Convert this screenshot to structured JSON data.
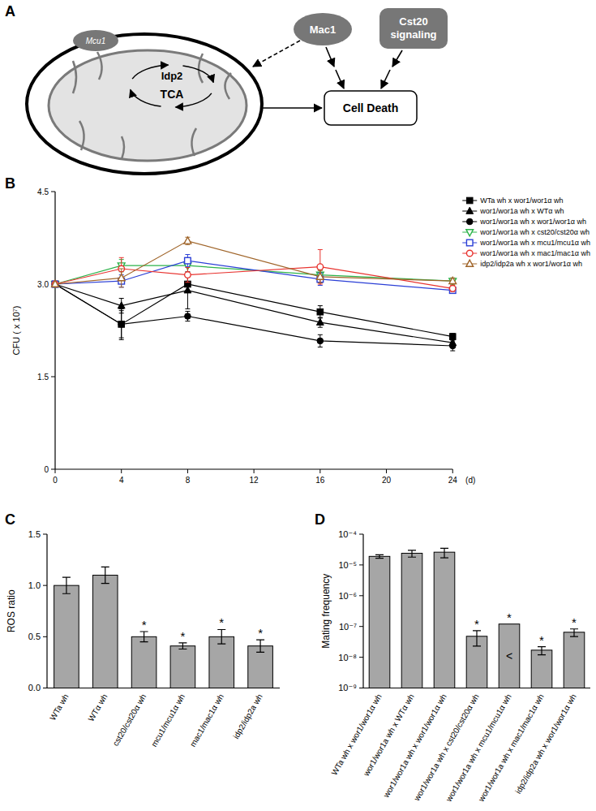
{
  "diagram": {
    "panel": "A",
    "mitochondrion": {
      "protein": "Mcu1",
      "enzyme": "Idp2",
      "cycle": "TCA"
    },
    "regulators": [
      "Mac1",
      "Cst20 signaling"
    ],
    "outcome": "Cell Death"
  },
  "chart_data": [
    {
      "panel": "B",
      "type": "line",
      "x_label": "(d)",
      "y_label": "CFU ( x 10⁷)",
      "x": [
        0,
        4,
        8,
        16,
        24
      ],
      "xlim": [
        0,
        24
      ],
      "xticks": [
        0,
        4,
        8,
        12,
        16,
        20,
        24
      ],
      "ylim": [
        0,
        4.5
      ],
      "yticks": [
        0,
        1.5,
        {
          "value": 3,
          "label": "3.0"
        },
        4.5
      ],
      "grid": false,
      "legend": "right",
      "series": [
        {
          "name": "WTa wh x wor1/wor1α wh",
          "color": "#000000",
          "marker": "square",
          "values": [
            3.0,
            2.35,
            3.0,
            2.55,
            2.15
          ],
          "errors": [
            0,
            0.25,
            0.12,
            0.1,
            0.05
          ]
        },
        {
          "name": "wor1/wor1a wh x WTα wh",
          "color": "#000000",
          "marker": "triangle",
          "values": [
            3.0,
            2.65,
            2.9,
            2.38,
            2.05
          ],
          "errors": [
            0,
            0.12,
            0.3,
            0.08,
            0.08
          ]
        },
        {
          "name": "wor1/wor1a wh x wor1/wor1α wh",
          "color": "#000000",
          "marker": "circle",
          "values": [
            3.0,
            2.35,
            2.48,
            2.08,
            2.0
          ],
          "errors": [
            0,
            0.22,
            0.08,
            0.1,
            0.08
          ]
        },
        {
          "name": "wor1/wor1a wh x cst20/cst20α wh",
          "color": "#2db34a",
          "marker": "open-triangle-down",
          "values": [
            3.0,
            3.3,
            3.3,
            3.15,
            3.05
          ],
          "errors": [
            0,
            0.1,
            0.12,
            0.08,
            0.05
          ]
        },
        {
          "name": "wor1/wor1a wh x mcu1/mcu1α wh",
          "color": "#2b3fd6",
          "marker": "open-square",
          "values": [
            3.0,
            3.05,
            3.38,
            3.08,
            2.9
          ],
          "errors": [
            0,
            0.1,
            0.1,
            0.1,
            0.04
          ]
        },
        {
          "name": "wor1/wor1a wh x mac1/mac1α wh",
          "color": "#e8332f",
          "marker": "open-circle",
          "values": [
            3.0,
            3.25,
            3.15,
            3.28,
            2.93
          ],
          "errors": [
            0,
            0.18,
            0.12,
            0.28,
            0.05
          ]
        },
        {
          "name": "idp2/idp2a wh x wor1/wor1α wh",
          "color": "#a0652a",
          "marker": "open-triangle",
          "values": [
            3.0,
            3.1,
            3.7,
            3.12,
            3.05
          ],
          "errors": [
            0,
            0.15,
            0.06,
            0.1,
            0.05
          ]
        }
      ]
    },
    {
      "panel": "C",
      "type": "bar",
      "y_label": "ROS ratio",
      "color": "#a6a6a6",
      "grid": false,
      "categories": [
        "WTa wh",
        "WTα wh",
        "cst20/cst20α wh",
        "mcu1/mcu1α wh",
        "mac1/mac1α wh",
        "idp2/idp2a wh"
      ],
      "values": [
        1.0,
        1.1,
        0.5,
        0.41,
        0.5,
        0.41
      ],
      "errors": [
        0.08,
        0.08,
        0.05,
        0.03,
        0.07,
        0.06
      ],
      "annotations": [
        null,
        null,
        "*",
        "*",
        "*",
        "*"
      ],
      "ylim": [
        0,
        1.5
      ],
      "yticks": [
        {
          "value": 0,
          "label": "0.0"
        },
        0.5,
        {
          "value": 1,
          "label": "1.0"
        },
        1.5
      ]
    },
    {
      "panel": "D",
      "type": "bar",
      "y_label": "Mating frequency",
      "color": "#a6a6a6",
      "grid": false,
      "log": "y",
      "categories": [
        "WTa wh x wor1/wor1α wh",
        "wor1/wor1a wh x WTα wh",
        "wor1/wor1a wh x wor1/wor1α wh",
        "wor1/wor1a wh x cst20/cst20α wh",
        "wor1/wor1a wh x mcu1/mcu1α wh",
        "wor1/wor1a wh x mac1/mac1α wh",
        "idp2/idp2a wh x wor1/wor1α wh"
      ],
      "values": [
        1.9e-05,
        2.4e-05,
        2.6e-05,
        4.8e-08,
        1.2e-07,
        1.7e-08,
        6.5e-08
      ],
      "errors": [
        2.5e-06,
        6e-06,
        9e-06,
        2.5e-08,
        null,
        5e-09,
        1.8e-08
      ],
      "annotations": [
        null,
        null,
        null,
        "*",
        "*",
        "*",
        "*"
      ],
      "bar_notes": [
        null,
        null,
        null,
        null,
        "<",
        null,
        null
      ],
      "ylim": [
        1e-09,
        0.0001
      ],
      "yticks": [
        {
          "value": 1e-09,
          "label": "10⁻⁹"
        },
        {
          "value": 1e-08,
          "label": "10⁻⁸"
        },
        {
          "value": 1e-07,
          "label": "10⁻⁷"
        },
        {
          "value": 1e-06,
          "label": "10⁻⁶"
        },
        {
          "value": 1e-05,
          "label": "10⁻⁵"
        },
        {
          "value": 0.0001,
          "label": "10⁻⁴"
        }
      ]
    }
  ]
}
